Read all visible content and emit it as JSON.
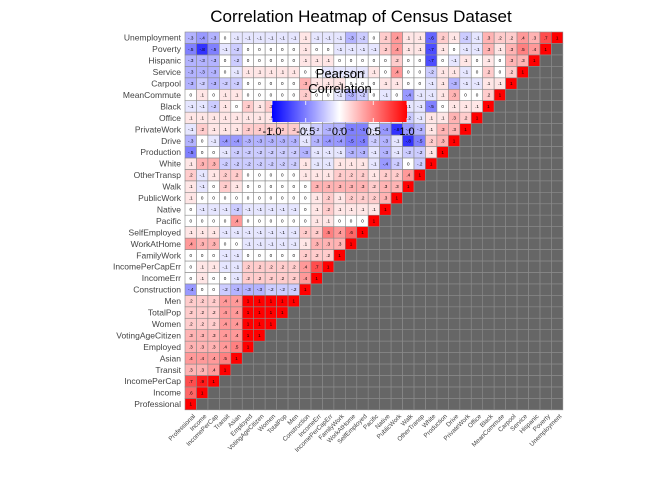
{
  "chart_data": {
    "type": "heatmap",
    "title": "Correlation Heatmap of Census Dataset",
    "legend": {
      "title_line1": "Pearson",
      "title_line2": "Correlation",
      "ticks": [
        "-1.0",
        "-0.5",
        "0.0",
        "0.5",
        "1.0"
      ],
      "range": [
        -1,
        1
      ],
      "colors": {
        "low": "#0000ff",
        "mid": "#ffffff",
        "high": "#ff0000"
      },
      "placement": "top-center"
    },
    "colors": {
      "panel": "#666666",
      "grid": "#8a8a8a"
    },
    "variables": [
      "Professional",
      "Income",
      "IncomePerCap",
      "Transit",
      "Asian",
      "Employed",
      "VotingAgeCitizen",
      "Women",
      "TotalPop",
      "Men",
      "Construction",
      "IncomeErr",
      "IncomePerCapErr",
      "FamilyWork",
      "WorkAtHome",
      "SelfEmployed",
      "Pacific",
      "Native",
      "PublicWork",
      "Walk",
      "OtherTransp",
      "White",
      "Production",
      "Drive",
      "PrivateWork",
      "Office",
      "Black",
      "MeanCommute",
      "Carpool",
      "Service",
      "Hispanic",
      "Poverty",
      "Unemployment"
    ],
    "matrix_lower": [
      [
        1
      ],
      [
        0.6,
        1
      ],
      [
        0.7,
        0.9,
        1
      ],
      [
        0.3,
        0.3,
        0.4,
        1
      ],
      [
        0.4,
        0.4,
        0.4,
        0.5,
        1
      ],
      [
        0.3,
        0.3,
        0.3,
        0.4,
        0.5,
        1
      ],
      [
        0.3,
        0.3,
        0.3,
        0.4,
        0.4,
        1,
        1
      ],
      [
        0.2,
        0.2,
        0.2,
        0.4,
        0.4,
        1,
        1,
        1
      ],
      [
        0.2,
        0.2,
        0.2,
        0.4,
        0.4,
        1,
        1,
        1,
        1
      ],
      [
        0.2,
        0.2,
        0.2,
        0.4,
        0.4,
        1,
        1,
        1,
        1,
        1
      ],
      [
        -0.4,
        0,
        0,
        -0.2,
        -0.3,
        -0.3,
        -0.3,
        -0.2,
        -0.2,
        -0.2,
        1
      ],
      [
        0,
        0.1,
        0,
        0,
        -0.1,
        0.2,
        0.2,
        0.2,
        0.2,
        0.2,
        0.4,
        1
      ],
      [
        0,
        0.1,
        0.1,
        -0.1,
        -0.1,
        0.2,
        0.2,
        0.2,
        0.2,
        0.2,
        0.4,
        0.7,
        1
      ],
      [
        0,
        0,
        0,
        -0.1,
        -0.1,
        0,
        0,
        0,
        0,
        0,
        0.2,
        0.2,
        0.2,
        1
      ],
      [
        0.4,
        0.3,
        0.3,
        0,
        0,
        -0.1,
        -0.1,
        -0.1,
        -0.1,
        -0.1,
        0.1,
        0.3,
        0.3,
        0.3,
        1
      ],
      [
        0.1,
        0.1,
        0.1,
        -0.1,
        -0.1,
        -0.1,
        -0.1,
        -0.1,
        -0.1,
        -0.1,
        0.2,
        0.2,
        0.5,
        0.4,
        0.6,
        1
      ],
      [
        0,
        0,
        0,
        0,
        0.4,
        0,
        0,
        0,
        0,
        0,
        0,
        0.1,
        0.1,
        0,
        0,
        0,
        1
      ],
      [
        0,
        -0.1,
        -0.1,
        -0.1,
        -0.2,
        -0.1,
        -0.1,
        -0.1,
        -0.1,
        -0.1,
        0,
        0.1,
        0.2,
        0.1,
        0.1,
        0.1,
        0.1,
        1
      ],
      [
        0.1,
        0,
        0,
        0,
        0,
        0,
        0,
        0,
        0,
        0,
        0,
        0.1,
        0.2,
        0.1,
        0.2,
        0.2,
        0.2,
        0.3,
        1
      ],
      [
        0.1,
        -0.1,
        0,
        0.2,
        0.1,
        0,
        0,
        0,
        0,
        0,
        0,
        0.3,
        0.3,
        0.3,
        0.3,
        0.3,
        0.2,
        0.3,
        0.3,
        1
      ],
      [
        0.2,
        -0.1,
        0.1,
        0.2,
        0.2,
        0,
        0,
        0,
        0,
        0,
        0.1,
        0.1,
        0.1,
        0.2,
        0.2,
        0.2,
        0.1,
        0.2,
        0.2,
        0.4,
        1
      ],
      [
        0.1,
        0.3,
        0.3,
        -0.2,
        -0.2,
        -0.2,
        -0.2,
        -0.2,
        -0.2,
        -0.2,
        0.1,
        -0.1,
        -0.1,
        0.1,
        0.1,
        0.1,
        -0.1,
        -0.4,
        -0.2,
        0,
        -0.2,
        1
      ],
      [
        -0.5,
        0,
        0,
        -0.1,
        -0.2,
        -0.2,
        -0.2,
        -0.2,
        -0.2,
        -0.2,
        -0.3,
        -0.1,
        -0.1,
        -0.1,
        -0.3,
        -0.3,
        -0.1,
        -0.3,
        -0.1,
        -0.2,
        -0.2,
        0.1,
        1
      ],
      [
        -0.3,
        0,
        -0.1,
        -0.4,
        -0.4,
        -0.3,
        -0.3,
        -0.3,
        -0.3,
        -0.3,
        -0.1,
        -0.3,
        -0.4,
        -0.4,
        -0.5,
        -0.5,
        -0.2,
        -0.3,
        -0.1,
        -0.8,
        -0.5,
        0.2,
        0.3,
        1
      ],
      [
        -0.1,
        0.2,
        0.1,
        0.1,
        0.1,
        0.2,
        0.2,
        0.2,
        0.2,
        0.2,
        -0.1,
        -0.2,
        -0.3,
        -0.3,
        -0.5,
        -0.5,
        -0.1,
        -0.4,
        -0.8,
        -0.4,
        -0.3,
        0.1,
        0.3,
        0.3,
        1
      ],
      [
        0.1,
        0.1,
        0.1,
        0.1,
        0.1,
        0.1,
        0.1,
        0.1,
        0.1,
        0.1,
        -0.2,
        0,
        -0.1,
        -0.2,
        -0.2,
        -0.3,
        0,
        -0.1,
        -0.1,
        -0.2,
        -0.1,
        0.1,
        0.1,
        0.3,
        0.2,
        1
      ],
      [
        -0.1,
        -0.1,
        -0.2,
        0.1,
        0,
        0.2,
        0.1,
        0.2,
        0.2,
        0.2,
        -0.1,
        -0.1,
        -0.1,
        -0.2,
        -0.2,
        -0.1,
        -0.1,
        -0.1,
        -0.1,
        -0.1,
        -0.1,
        -0.5,
        0,
        0.1,
        0.1,
        0.1,
        1
      ],
      [
        0,
        0.1,
        0,
        0.1,
        0.1,
        0,
        0,
        0,
        0,
        0,
        0.2,
        0,
        0,
        -0.1,
        -0.3,
        -0.2,
        0,
        -0.1,
        0,
        -0.4,
        -0.1,
        -0.1,
        0.1,
        0.3,
        0,
        0,
        0.2,
        1
      ],
      [
        -0.3,
        -0.2,
        -0.3,
        -0.2,
        -0.2,
        0,
        0,
        0,
        0,
        0,
        0.3,
        0.1,
        0.1,
        0.1,
        0,
        0,
        0,
        0.1,
        0.1,
        0,
        0,
        -0.1,
        0.1,
        -0.3,
        -0.1,
        -0.1,
        0.1,
        0.1,
        1
      ],
      [
        -0.3,
        -0.3,
        -0.3,
        0,
        -0.1,
        0.1,
        0.1,
        0.1,
        0.1,
        0.1,
        0,
        0,
        -0.1,
        -0.1,
        -0.1,
        -0.1,
        0.1,
        0,
        0.4,
        0,
        0,
        -0.2,
        0.1,
        0.1,
        -0.1,
        0,
        0.2,
        0,
        0.2,
        1
      ],
      [
        -0.3,
        -0.3,
        -0.3,
        0,
        -0.2,
        0,
        0,
        0,
        0,
        0,
        0.1,
        0.1,
        0.1,
        0,
        0,
        0,
        0,
        0,
        0.2,
        0,
        0,
        -0.7,
        0,
        -0.1,
        0.1,
        0,
        0.1,
        0,
        0.3,
        0.3,
        1
      ],
      [
        -0.5,
        -0.8,
        -0.5,
        -0.1,
        -0.2,
        0,
        0,
        0,
        0,
        0,
        0.1,
        0,
        0,
        -0.1,
        -0.1,
        -0.1,
        -0.1,
        0.2,
        0.4,
        0.1,
        0.1,
        -0.7,
        0.1,
        0,
        -0.1,
        -0.1,
        0.3,
        0.1,
        0.3,
        0.5,
        0.4,
        1
      ],
      [
        -0.3,
        -0.4,
        -0.3,
        0,
        -0.1,
        -0.1,
        -0.1,
        -0.1,
        -0.1,
        -0.1,
        0.1,
        -0.1,
        -0.1,
        -0.1,
        -0.3,
        -0.2,
        0,
        0.2,
        0.4,
        0.1,
        0.1,
        -0.6,
        0.2,
        0.1,
        -0.2,
        -0.1,
        0.3,
        0.2,
        0.2,
        0.4,
        0.3,
        0.7,
        1
      ]
    ]
  }
}
